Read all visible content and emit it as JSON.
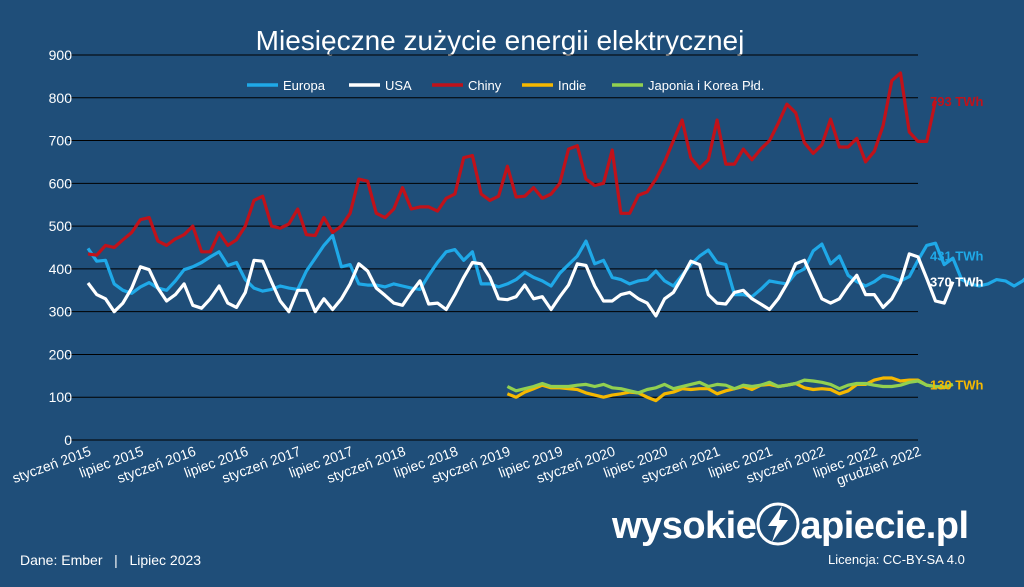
{
  "chart_data": {
    "type": "line",
    "title": "Miesięczne zużycie energii elektrycznej",
    "ylim": [
      0,
      900
    ],
    "yticks": [
      0,
      100,
      200,
      300,
      400,
      500,
      600,
      700,
      800,
      900
    ],
    "x_tick_labels": [
      "styczeń 2015",
      "lipiec 2015",
      "styczeń 2016",
      "lipiec 2016",
      "styczeń 2017",
      "lipiec 2017",
      "styczeń 2018",
      "lipiec 2018",
      "styczeń 2019",
      "lipiec 2019",
      "styczeń 2020",
      "lipiec 2020",
      "styczeń 2021",
      "lipiec 2021",
      "styczeń 2022",
      "lipiec 2022",
      "grudzień 2022"
    ],
    "x_start": "2015-01",
    "x_end": "2022-12",
    "legend_position": "top",
    "grid": "horizontal",
    "series": [
      {
        "name": "Europa",
        "color": "#1fa9e8",
        "start": "2015-01",
        "values": [
          448,
          418,
          420,
          365,
          350,
          343,
          358,
          368,
          355,
          350,
          372,
          398,
          405,
          415,
          428,
          440,
          408,
          415,
          375,
          355,
          348,
          352,
          360,
          355,
          352,
          395,
          425,
          455,
          478,
          405,
          410,
          365,
          362,
          362,
          358,
          365,
          360,
          355,
          352,
          385,
          415,
          440,
          445,
          420,
          440,
          365,
          365,
          358,
          365,
          375,
          392,
          380,
          372,
          360,
          390,
          410,
          430,
          465,
          412,
          420,
          380,
          375,
          365,
          372,
          375,
          395,
          372,
          360,
          385,
          410,
          430,
          444,
          415,
          410,
          340,
          340,
          335,
          352,
          372,
          368,
          365,
          390,
          400,
          442,
          458,
          412,
          430,
          385,
          370,
          360,
          370,
          385,
          380,
          372,
          382,
          420,
          455,
          460,
          410,
          425,
          375,
          365,
          360,
          365,
          375,
          372,
          360,
          372,
          392,
          431
        ]
      },
      {
        "name": "USA",
        "color": "#ffffff",
        "start": "2015-01",
        "values": [
          367,
          340,
          330,
          300,
          320,
          355,
          405,
          398,
          355,
          325,
          340,
          365,
          315,
          308,
          330,
          360,
          320,
          310,
          345,
          420,
          418,
          370,
          325,
          300,
          350,
          350,
          300,
          330,
          305,
          330,
          365,
          412,
          395,
          355,
          338,
          320,
          315,
          345,
          372,
          318,
          320,
          305,
          340,
          380,
          415,
          412,
          380,
          330,
          328,
          335,
          362,
          330,
          335,
          305,
          335,
          362,
          412,
          408,
          360,
          325,
          325,
          340,
          345,
          330,
          320,
          290,
          330,
          345,
          380,
          418,
          410,
          340,
          320,
          318,
          345,
          350,
          330,
          318,
          305,
          330,
          365,
          412,
          420,
          375,
          330,
          320,
          330,
          360,
          385,
          340,
          340,
          310,
          330,
          368,
          435,
          428,
          378,
          325,
          320,
          370
        ]
      },
      {
        "name": "Chiny",
        "color": "#c0121a",
        "start": "2015-01",
        "values": [
          435,
          432,
          455,
          450,
          468,
          485,
          515,
          520,
          465,
          455,
          470,
          480,
          500,
          440,
          440,
          485,
          455,
          468,
          500,
          560,
          570,
          500,
          495,
          505,
          540,
          480,
          478,
          520,
          485,
          500,
          530,
          610,
          605,
          530,
          520,
          540,
          590,
          540,
          545,
          545,
          535,
          565,
          575,
          660,
          665,
          575,
          560,
          570,
          640,
          568,
          570,
          590,
          565,
          575,
          600,
          680,
          688,
          610,
          595,
          600,
          678,
          530,
          530,
          572,
          580,
          610,
          650,
          700,
          748,
          660,
          635,
          655,
          748,
          645,
          645,
          680,
          655,
          680,
          700,
          740,
          785,
          765,
          695,
          670,
          690,
          750,
          685,
          685,
          705,
          650,
          675,
          735,
          840,
          858,
          720,
          698,
          698,
          793
        ]
      },
      {
        "name": "Indie",
        "color": "#f5b800",
        "start": "2019-01",
        "values": [
          108,
          100,
          112,
          120,
          128,
          122,
          122,
          120,
          118,
          110,
          105,
          100,
          105,
          108,
          112,
          110,
          100,
          92,
          108,
          112,
          120,
          118,
          120,
          120,
          108,
          115,
          120,
          125,
          118,
          128,
          130,
          125,
          128,
          132,
          122,
          118,
          120,
          118,
          108,
          115,
          130,
          130,
          140,
          145,
          145,
          138,
          140,
          140,
          128,
          125,
          122,
          130
        ]
      },
      {
        "name": "Japonia i Korea Płd.",
        "color": "#92d050",
        "start": "2019-01",
        "values": [
          125,
          115,
          120,
          125,
          132,
          125,
          125,
          125,
          128,
          130,
          125,
          130,
          122,
          120,
          115,
          110,
          118,
          122,
          130,
          120,
          125,
          130,
          135,
          125,
          130,
          128,
          120,
          128,
          125,
          128,
          135,
          125,
          128,
          132,
          140,
          138,
          135,
          130,
          120,
          128,
          132,
          132,
          128,
          125,
          125,
          128,
          135,
          138,
          128,
          125,
          124,
          130
        ]
      }
    ],
    "end_labels": [
      {
        "text": "793 TWh",
        "series": "Chiny",
        "color": "#c0121a"
      },
      {
        "text": "431 TWh",
        "series": "Europa",
        "color": "#1fa9e8"
      },
      {
        "text": "370 TWh",
        "series": "USA",
        "color": "#ffffff"
      },
      {
        "text": "130 TWh",
        "series": "Indie",
        "color": "#f5b800"
      }
    ]
  },
  "footer": {
    "source": "Dane: Ember   |   Lipiec 2023",
    "logo_left": "wysokie",
    "logo_right": "apiecie.pl",
    "license": "Licencja: CC-BY-SA 4.0"
  }
}
